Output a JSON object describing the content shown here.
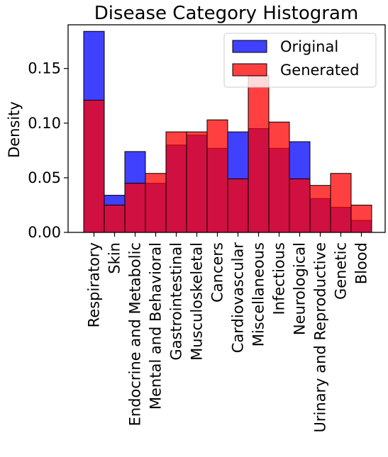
{
  "chart_data": {
    "type": "bar",
    "title": "Disease Category Histogram",
    "xlabel": "",
    "ylabel": "Density",
    "ylim": [
      0,
      0.19
    ],
    "yticks": [
      "0.00",
      "0.05",
      "0.10",
      "0.15"
    ],
    "grid": false,
    "legend_position": "top-right",
    "categories": [
      "Respiratory",
      "Skin",
      "Endocrine and Metabolic",
      "Mental and Behavioral",
      "Gastrointestinal",
      "Musculoskeletal",
      "Cancers",
      "Cardiovascular",
      "Miscellaneous",
      "Infectious",
      "Neurological",
      "Urinary and Reproductive",
      "Genetic",
      "Blood"
    ],
    "series": [
      {
        "name": "Original",
        "color": "#0000ff",
        "values": [
          0.184,
          0.034,
          0.074,
          0.045,
          0.08,
          0.089,
          0.077,
          0.092,
          0.095,
          0.077,
          0.083,
          0.031,
          0.023,
          0.011
        ]
      },
      {
        "name": "Generated",
        "color": "#ff0000",
        "values": [
          0.121,
          0.025,
          0.045,
          0.054,
          0.092,
          0.092,
          0.103,
          0.049,
          0.144,
          0.101,
          0.049,
          0.043,
          0.054,
          0.025
        ]
      }
    ]
  }
}
